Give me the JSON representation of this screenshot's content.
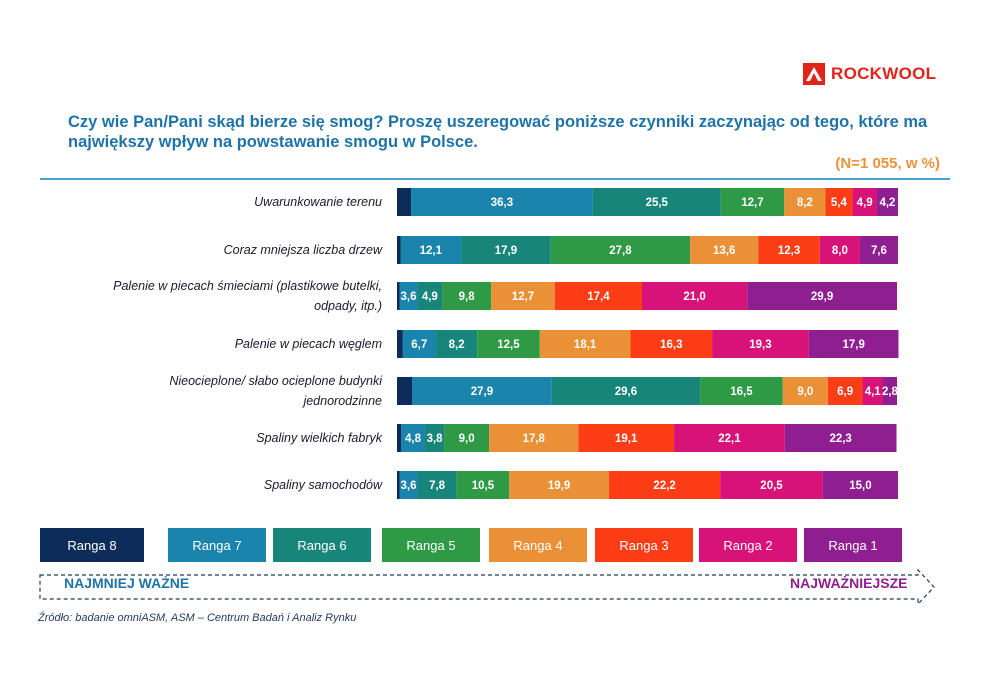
{
  "logo": {
    "text": "ROCKWOOL",
    "color": "#e2231a"
  },
  "title": "Czy wie Pan/Pani skąd bierze się smog? Proszę uszeregować  poniższe czynniki zaczynając od tego, które ma największy wpływ na powstawanie smogu w Polsce.",
  "sample_note": "(N=1 055, w %)",
  "legend_direction": {
    "left": "NAJMNIEJ WAŻNE",
    "right": "NAJWAŻNIEJSZE"
  },
  "source": "Źródło: badanie omniASM, ASM – Centrum Badań i Analiz Rynku",
  "chart_data": {
    "type": "bar",
    "orientation": "horizontal",
    "stacked": true,
    "unit": "%",
    "categories": [
      "Uwarunkowanie terenu",
      "Coraz mniejsza liczba drzew",
      "Palenie w piecach śmieciami (plastikowe butelki, odpady, itp.)",
      "Palenie w piecach węglem",
      "Nieocieplone/ słabo ocieplone budynki jednorodzinne",
      "Spaliny wielkich fabryk",
      "Spaliny samochodów"
    ],
    "series": [
      {
        "name": "Ranga 8",
        "color": "#0e2c5a",
        "values": [
          2.8,
          0.7,
          0.5,
          1.1,
          3.0,
          0.8,
          0.5
        ],
        "labels": [
          "",
          "",
          "",
          "",
          "",
          "",
          ""
        ]
      },
      {
        "name": "Ranga 7",
        "color": "#1b84ad",
        "values": [
          36.3,
          12.1,
          3.6,
          6.7,
          27.9,
          4.8,
          3.6
        ],
        "labels": [
          "36,3",
          "12,1",
          "3,6",
          "6,7",
          "27,9",
          "4,8",
          "3,6"
        ]
      },
      {
        "name": "Ranga 6",
        "color": "#17857a",
        "values": [
          25.5,
          17.9,
          4.9,
          8.2,
          29.6,
          3.8,
          7.8
        ],
        "labels": [
          "25,5",
          "17,9",
          "4,9",
          "8,2",
          "29,6",
          "3,8",
          "7,8"
        ]
      },
      {
        "name": "Ranga 5",
        "color": "#2e9a45",
        "values": [
          12.7,
          27.8,
          9.8,
          12.5,
          16.5,
          9.0,
          10.5
        ],
        "labels": [
          "12,7",
          "27,8",
          "9,8",
          "12,5",
          "16,5",
          "9,0",
          "10,5"
        ]
      },
      {
        "name": "Ranga 4",
        "color": "#ea9137",
        "values": [
          8.2,
          13.6,
          12.7,
          18.1,
          9.0,
          17.8,
          19.9
        ],
        "labels": [
          "8,2",
          "13,6",
          "12,7",
          "18,1",
          "9,0",
          "17,8",
          "19,9"
        ]
      },
      {
        "name": "Ranga 3",
        "color": "#fc3d16",
        "values": [
          5.4,
          12.3,
          17.4,
          16.3,
          6.9,
          19.1,
          22.2
        ],
        "labels": [
          "5,4",
          "12,3",
          "17,4",
          "16,3",
          "6,9",
          "19,1",
          "22,2"
        ]
      },
      {
        "name": "Ranga 2",
        "color": "#d7137a",
        "values": [
          4.9,
          8.0,
          21.0,
          19.3,
          4.1,
          22.1,
          20.5
        ],
        "labels": [
          "4,9",
          "8,0",
          "21,0",
          "19,3",
          "4,1",
          "22,1",
          "20,5"
        ]
      },
      {
        "name": "Ranga 1",
        "color": "#8f1f91",
        "values": [
          4.2,
          7.6,
          29.9,
          17.9,
          2.8,
          22.3,
          15.0
        ],
        "labels": [
          "4,2",
          "7,6",
          "29,9",
          "17,9",
          "2,8",
          "22,3",
          "15,0"
        ]
      }
    ],
    "legend_position": "bottom",
    "xlim": [
      0,
      100
    ]
  }
}
